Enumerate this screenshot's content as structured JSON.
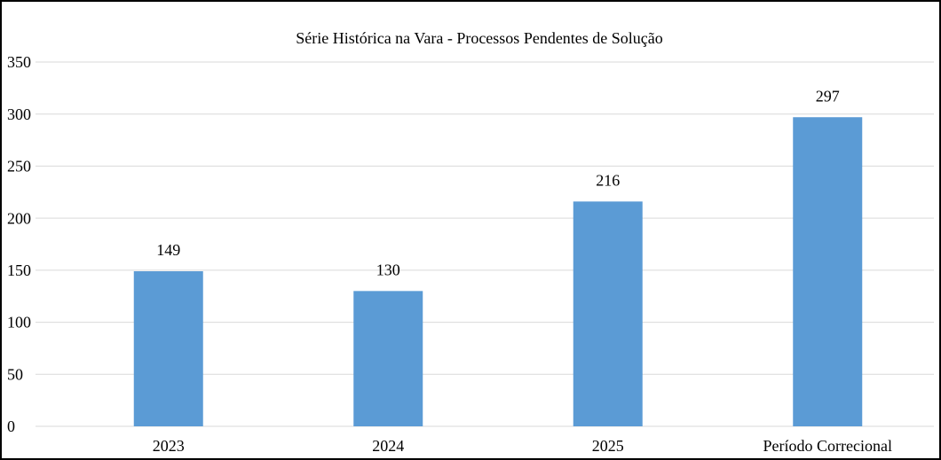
{
  "chart_data": {
    "type": "bar",
    "title": "Série Histórica na Vara - Processos Pendentes de Solução",
    "categories": [
      "2023",
      "2024",
      "2025",
      "Período Correcional"
    ],
    "values": [
      149,
      130,
      216,
      297
    ],
    "color": "#5b9bd5",
    "ylim": [
      0,
      350
    ],
    "yticks": [
      0,
      50,
      100,
      150,
      200,
      250,
      300,
      350
    ],
    "grid": true
  }
}
